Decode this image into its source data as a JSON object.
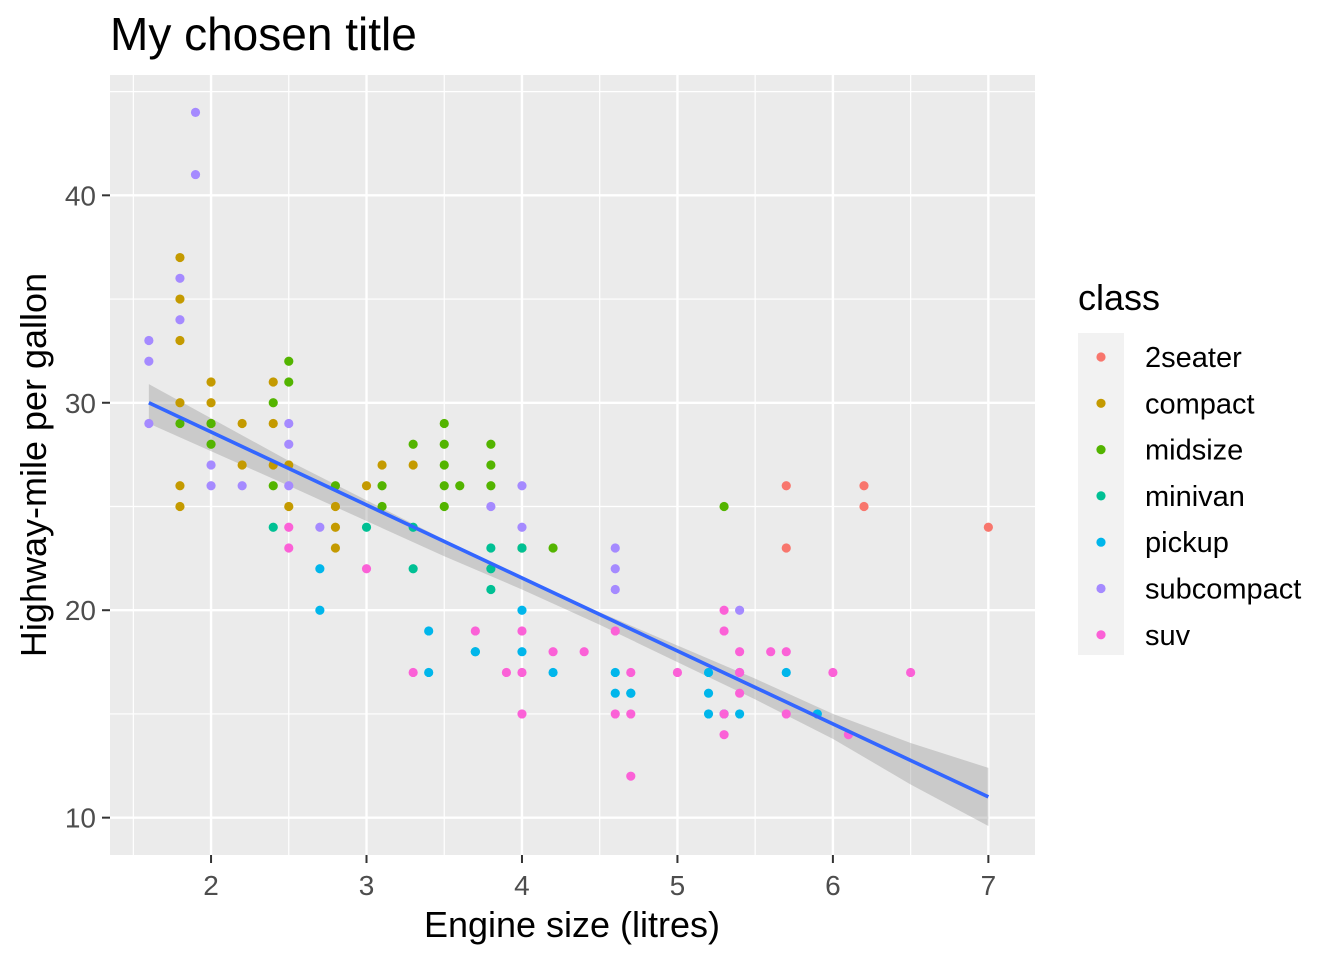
{
  "chart_data": {
    "type": "scatter",
    "title": "My chosen title",
    "xlabel": "Engine size (litres)",
    "ylabel": "Highway-mile per gallon",
    "xlim": [
      1.35,
      7.3
    ],
    "ylim": [
      8.2,
      45.8
    ],
    "x_ticks": [
      2,
      3,
      4,
      5,
      6,
      7
    ],
    "y_ticks": [
      10,
      20,
      30,
      40
    ],
    "grid": true,
    "legend": {
      "title": "class",
      "position": "right"
    },
    "series": [
      {
        "name": "2seater",
        "color": "#F8766D",
        "points": [
          [
            5.7,
            26
          ],
          [
            5.7,
            23
          ],
          [
            6.2,
            26
          ],
          [
            6.2,
            25
          ],
          [
            7.0,
            24
          ]
        ]
      },
      {
        "name": "compact",
        "color": "#C49A00",
        "points": [
          [
            1.8,
            37
          ],
          [
            1.8,
            35
          ],
          [
            1.8,
            33
          ],
          [
            1.8,
            30
          ],
          [
            1.8,
            26
          ],
          [
            1.8,
            25
          ],
          [
            2.0,
            31
          ],
          [
            2.0,
            30
          ],
          [
            2.0,
            29
          ],
          [
            2.2,
            29
          ],
          [
            2.2,
            27
          ],
          [
            2.4,
            31
          ],
          [
            2.4,
            29
          ],
          [
            2.4,
            27
          ],
          [
            2.5,
            27
          ],
          [
            2.5,
            25
          ],
          [
            2.8,
            25
          ],
          [
            2.8,
            24
          ],
          [
            2.8,
            23
          ],
          [
            3.0,
            26
          ],
          [
            3.1,
            27
          ],
          [
            3.3,
            27
          ]
        ]
      },
      {
        "name": "midsize",
        "color": "#53B400",
        "points": [
          [
            1.8,
            29
          ],
          [
            2.0,
            29
          ],
          [
            2.0,
            28
          ],
          [
            2.4,
            30
          ],
          [
            2.4,
            26
          ],
          [
            2.5,
            32
          ],
          [
            2.5,
            31
          ],
          [
            2.8,
            26
          ],
          [
            3.1,
            26
          ],
          [
            3.1,
            25
          ],
          [
            3.3,
            28
          ],
          [
            3.5,
            29
          ],
          [
            3.5,
            28
          ],
          [
            3.5,
            27
          ],
          [
            3.5,
            26
          ],
          [
            3.5,
            25
          ],
          [
            3.6,
            26
          ],
          [
            3.8,
            28
          ],
          [
            3.8,
            27
          ],
          [
            3.8,
            26
          ],
          [
            4.0,
            23
          ],
          [
            4.2,
            23
          ],
          [
            5.3,
            25
          ]
        ]
      },
      {
        "name": "minivan",
        "color": "#00C094",
        "points": [
          [
            2.4,
            24
          ],
          [
            3.0,
            24
          ],
          [
            3.3,
            24
          ],
          [
            3.3,
            22
          ],
          [
            3.8,
            23
          ],
          [
            3.8,
            22
          ],
          [
            3.8,
            21
          ],
          [
            4.0,
            23
          ],
          [
            3.7,
            18
          ]
        ]
      },
      {
        "name": "pickup",
        "color": "#00B6EB",
        "points": [
          [
            2.7,
            22
          ],
          [
            2.7,
            20
          ],
          [
            3.4,
            19
          ],
          [
            3.4,
            17
          ],
          [
            3.7,
            18
          ],
          [
            4.0,
            20
          ],
          [
            4.0,
            18
          ],
          [
            4.2,
            17
          ],
          [
            4.6,
            17
          ],
          [
            4.6,
            16
          ],
          [
            4.7,
            16
          ],
          [
            4.7,
            16
          ],
          [
            5.2,
            17
          ],
          [
            5.2,
            16
          ],
          [
            5.2,
            15
          ],
          [
            5.3,
            15
          ],
          [
            5.4,
            15
          ],
          [
            5.7,
            17
          ],
          [
            5.9,
            15
          ]
        ]
      },
      {
        "name": "subcompact",
        "color": "#A58AFF",
        "points": [
          [
            1.6,
            33
          ],
          [
            1.6,
            32
          ],
          [
            1.6,
            29
          ],
          [
            1.8,
            36
          ],
          [
            1.8,
            34
          ],
          [
            1.9,
            44
          ],
          [
            1.9,
            41
          ],
          [
            2.0,
            27
          ],
          [
            2.0,
            26
          ],
          [
            2.2,
            26
          ],
          [
            2.5,
            29
          ],
          [
            2.5,
            28
          ],
          [
            2.5,
            26
          ],
          [
            2.7,
            24
          ],
          [
            3.8,
            25
          ],
          [
            4.0,
            26
          ],
          [
            4.0,
            24
          ],
          [
            4.6,
            23
          ],
          [
            4.6,
            22
          ],
          [
            4.6,
            21
          ],
          [
            5.4,
            20
          ],
          [
            5.4,
            17
          ]
        ]
      },
      {
        "name": "suv",
        "color": "#FB61D7",
        "points": [
          [
            2.5,
            24
          ],
          [
            2.5,
            23
          ],
          [
            3.0,
            22
          ],
          [
            3.3,
            17
          ],
          [
            3.7,
            19
          ],
          [
            3.9,
            17
          ],
          [
            4.0,
            19
          ],
          [
            4.0,
            17
          ],
          [
            4.0,
            15
          ],
          [
            4.2,
            18
          ],
          [
            4.4,
            18
          ],
          [
            4.6,
            19
          ],
          [
            4.6,
            15
          ],
          [
            4.7,
            17
          ],
          [
            4.7,
            15
          ],
          [
            4.7,
            12
          ],
          [
            5.0,
            17
          ],
          [
            5.3,
            20
          ],
          [
            5.3,
            19
          ],
          [
            5.3,
            15
          ],
          [
            5.3,
            14
          ],
          [
            5.4,
            18
          ],
          [
            5.4,
            17
          ],
          [
            5.4,
            16
          ],
          [
            5.6,
            18
          ],
          [
            5.7,
            18
          ],
          [
            5.7,
            15
          ],
          [
            6.0,
            17
          ],
          [
            6.1,
            14
          ],
          [
            6.5,
            17
          ]
        ]
      }
    ],
    "smooth": {
      "method": "lm",
      "color": "#3366FF",
      "ribbon_color": "#999999",
      "line": [
        [
          1.6,
          30.0
        ],
        [
          7.0,
          11.0
        ]
      ],
      "ribbon_upper": [
        [
          1.6,
          30.9
        ],
        [
          2.5,
          27.2
        ],
        [
          3.0,
          25.3
        ],
        [
          3.5,
          23.4
        ],
        [
          4.0,
          21.6
        ],
        [
          4.5,
          19.9
        ],
        [
          5.0,
          18.3
        ],
        [
          5.5,
          16.7
        ],
        [
          6.0,
          15.0
        ],
        [
          6.5,
          13.6
        ],
        [
          7.0,
          12.4
        ]
      ],
      "ribbon_lower": [
        [
          1.6,
          29.0
        ],
        [
          2.5,
          26.0
        ],
        [
          3.0,
          24.3
        ],
        [
          3.5,
          22.6
        ],
        [
          4.0,
          21.0
        ],
        [
          4.5,
          19.3
        ],
        [
          5.0,
          17.5
        ],
        [
          5.5,
          15.7
        ],
        [
          6.0,
          13.8
        ],
        [
          6.5,
          11.6
        ],
        [
          7.0,
          9.6
        ]
      ]
    }
  }
}
